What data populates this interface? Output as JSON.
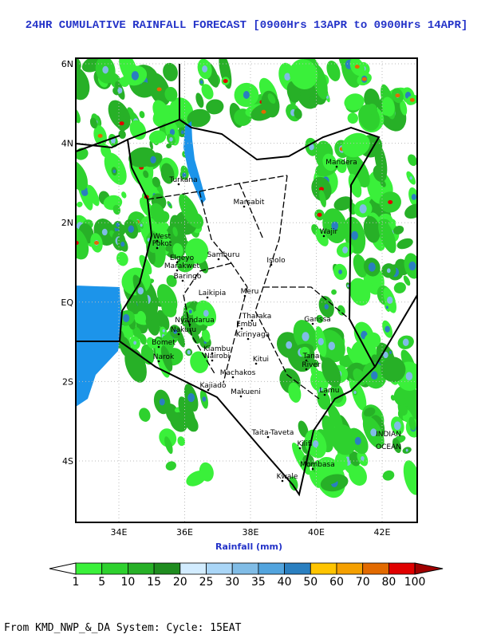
{
  "header": {
    "title": "24HR CUMULATIVE RAINFALL FORECAST [0900Hrs 13APR to 0900Hrs 14APR]"
  },
  "map": {
    "lat_ticks": [
      "6N",
      "4N",
      "2N",
      "EQ",
      "2S",
      "4S"
    ],
    "lon_ticks": [
      "34E",
      "36E",
      "38E",
      "40E",
      "42E"
    ],
    "places": [
      "Turkana",
      "Marsabit",
      "Mandera",
      "Wajir",
      "Samburu",
      "Isiolo",
      "West",
      "Pokot",
      "Elgeyo",
      "Marakwet",
      "Baringo",
      "Laikipia",
      "Meru",
      "Garissa",
      "Tharaka",
      "Embu",
      "Nyandarua",
      "Nakuru",
      "Kirinyaga",
      "Bomet",
      "Narok",
      "Kiambu",
      "Nairobi",
      "Machakos",
      "Kitui",
      "Tana",
      "River",
      "Kajiado",
      "Makueni",
      "Lamu",
      "Taita-Taveta",
      "Kilifi",
      "Mombasa",
      "Kwale",
      "INDIAN",
      "OCEAN"
    ]
  },
  "colorbar": {
    "label": "Rainfall (mm)",
    "levels": [
      1,
      5,
      10,
      15,
      20,
      25,
      30,
      35,
      40,
      50,
      60,
      70,
      80,
      100
    ],
    "colors": [
      "#3af03a",
      "#2ed12e",
      "#27b027",
      "#1f8c1f",
      "#d2ecff",
      "#aad6f7",
      "#80bce6",
      "#52a4de",
      "#2a7fc0",
      "#ffc400",
      "#f5a000",
      "#e26a00",
      "#e00000"
    ],
    "under_color": "#ffffff",
    "over_color": "#a00000"
  },
  "footer": {
    "text": "From KMD_NWP_&_DA System: Cycle: 15EAT"
  }
}
